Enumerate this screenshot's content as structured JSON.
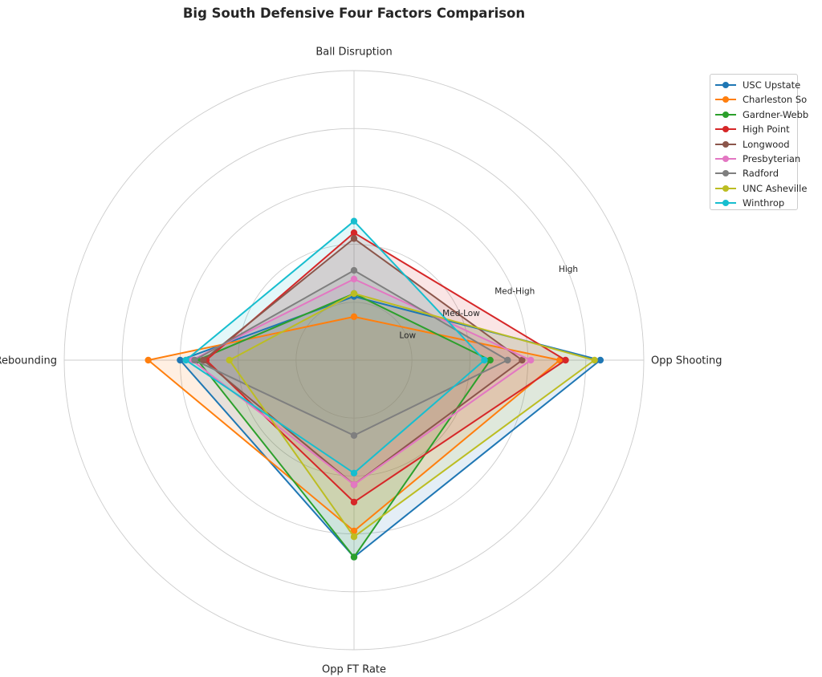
{
  "chart_data": {
    "type": "radar",
    "title": "Big South Defensive Four Factors Comparison",
    "axes": [
      "Ball Disruption",
      "Opp Shooting",
      "Opp FT Rate",
      "Def Rebounding"
    ],
    "ring_labels": [
      "Low",
      "Med-Low",
      "Med-High",
      "High"
    ],
    "ring_values": [
      1,
      2,
      3,
      4
    ],
    "rmax": 5,
    "legend_position": "top-right",
    "grid": true,
    "series": [
      {
        "name": "USC Upstate",
        "color": "#1f77b4",
        "values": [
          1.1,
          4.25,
          3.4,
          3.0
        ]
      },
      {
        "name": "Charleston So",
        "color": "#ff7f0e",
        "values": [
          0.75,
          3.55,
          2.95,
          3.55
        ]
      },
      {
        "name": "Gardner-Webb",
        "color": "#2ca02c",
        "values": [
          1.15,
          2.35,
          3.4,
          2.7
        ]
      },
      {
        "name": "High Point",
        "color": "#d62728",
        "values": [
          2.2,
          3.65,
          2.45,
          2.55
        ]
      },
      {
        "name": "Longwood",
        "color": "#8c564b",
        "values": [
          2.1,
          2.9,
          2.15,
          2.6
        ]
      },
      {
        "name": "Presbyterian",
        "color": "#e377c2",
        "values": [
          1.4,
          3.05,
          2.15,
          2.8
        ]
      },
      {
        "name": "Radford",
        "color": "#7f7f7f",
        "values": [
          1.55,
          2.65,
          1.3,
          2.75
        ]
      },
      {
        "name": "UNC Asheville",
        "color": "#bcbd22",
        "values": [
          1.15,
          4.15,
          3.05,
          2.15
        ]
      },
      {
        "name": "Winthrop",
        "color": "#17becf",
        "values": [
          2.4,
          2.25,
          1.95,
          2.9
        ]
      }
    ]
  }
}
